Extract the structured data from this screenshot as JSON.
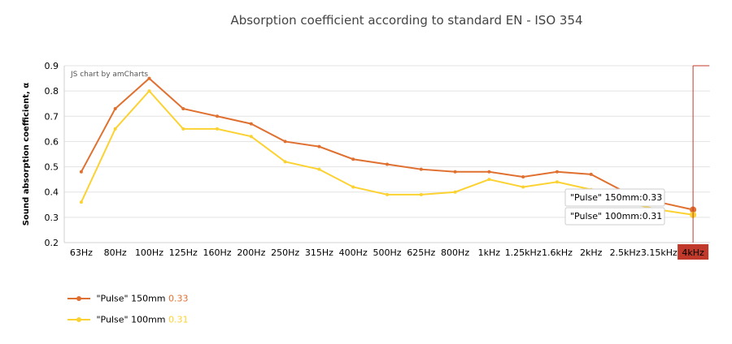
{
  "chart_data": {
    "type": "line",
    "title": "Absorption coefficient according to standard EN - ISO 354",
    "xlabel": "",
    "ylabel": "Sound absorption coefficient, α",
    "credit": "JS chart by amCharts",
    "categories": [
      "63Hz",
      "80Hz",
      "100Hz",
      "125Hz",
      "160Hz",
      "200Hz",
      "250Hz",
      "315Hz",
      "400Hz",
      "500Hz",
      "625Hz",
      "800Hz",
      "1kHz",
      "1.25kHz",
      "1.6kHz",
      "2kHz",
      "2.5kHz",
      "3.15kHz",
      "4kHz"
    ],
    "ylim": [
      0.2,
      0.9
    ],
    "yticks": [
      "0.2",
      "0.3",
      "0.4",
      "0.5",
      "0.6",
      "0.7",
      "0.8",
      "0.9"
    ],
    "grid": true,
    "legend_position": "bottom-left",
    "highlighted_category": "4kHz",
    "series": [
      {
        "name": "\"Pulse\" 150mm",
        "color": "#e07030",
        "values": [
          0.48,
          0.73,
          0.85,
          0.73,
          0.7,
          0.67,
          0.6,
          0.58,
          0.53,
          0.51,
          0.49,
          0.48,
          0.48,
          0.46,
          0.48,
          0.47,
          0.4,
          0.36,
          0.33
        ],
        "current": "0.33",
        "tooltip": "\"Pulse\" 150mm:0.33"
      },
      {
        "name": "\"Pulse\" 100mm",
        "color": "#fcd232",
        "values": [
          0.36,
          0.65,
          0.8,
          0.65,
          0.65,
          0.62,
          0.52,
          0.49,
          0.42,
          0.39,
          0.39,
          0.4,
          0.45,
          0.42,
          0.44,
          0.41,
          0.36,
          0.33,
          0.31
        ],
        "current": "0.31",
        "tooltip": "\"Pulse\" 100mm:0.31"
      }
    ],
    "cursor_color": "#c0392b"
  }
}
